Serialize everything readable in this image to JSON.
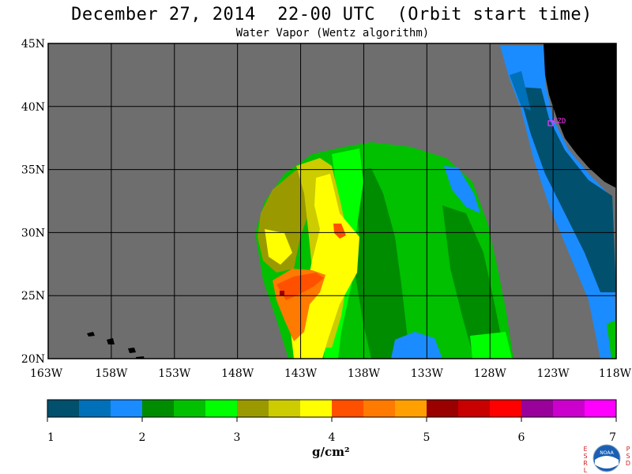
{
  "header": {
    "title": "December 27, 2014  22-00 UTC  (Orbit start time)",
    "subtitle": "Water Vapor (Wentz algorithm)"
  },
  "map": {
    "lat_labels": [
      "45N",
      "40N",
      "35N",
      "30N",
      "25N",
      "20N"
    ],
    "lon_labels": [
      "163W",
      "158W",
      "153W",
      "148W",
      "143W",
      "138W",
      "133W",
      "128W",
      "123W",
      "118W"
    ],
    "station_label": "CZD",
    "colors": {
      "ocean_nodata": "#6e6e6e",
      "land": "#000000",
      "station": "#ff33ff"
    }
  },
  "colorbar": {
    "tick_labels": [
      "1",
      "2",
      "3",
      "4",
      "5",
      "6",
      "7"
    ],
    "units": "g/cm²",
    "colors": [
      "#00506e",
      "#0070b8",
      "#1a8cff",
      "#008c00",
      "#00c000",
      "#00ff00",
      "#9a9a00",
      "#cccc00",
      "#ffff00",
      "#ff5000",
      "#ff7a00",
      "#ffa000",
      "#9a0000",
      "#c80000",
      "#ff0000",
      "#9a009a",
      "#cc00cc",
      "#ff00ff"
    ]
  },
  "logo": {
    "left_letters": "ESRL",
    "right_letters": "PSD",
    "center_text": "NOAA",
    "icon": "noaa-logo-icon"
  }
}
